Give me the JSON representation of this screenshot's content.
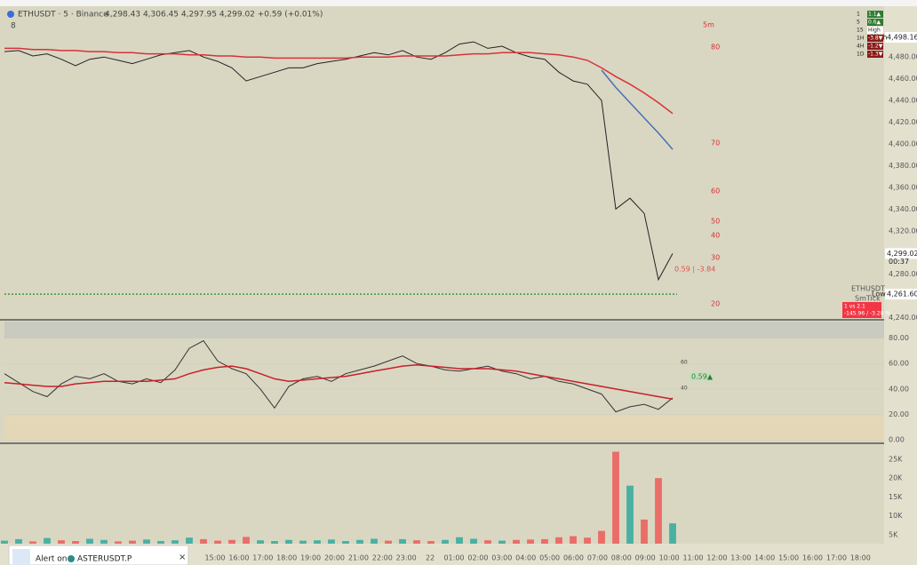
{
  "header": {
    "symbol": "ETHUSDT · 5 · Binance",
    "ohlc": "4,298.43  4,306.45  4,297.95  4,299.02  +0.59 (+0.01%)",
    "indicator_count": "8"
  },
  "price_chart": {
    "type": "line",
    "series": [
      {
        "name": "ETHUSDT",
        "color": "#222222",
        "values": [
          4485,
          4486,
          4481,
          4483,
          4478,
          4472,
          4478,
          4480,
          4477,
          4474,
          4478,
          4482,
          4484,
          4486,
          4480,
          4476,
          4470,
          4458,
          4462,
          4466,
          4470,
          4470,
          4474,
          4476,
          4478,
          4481,
          4484,
          4482,
          4486,
          4480,
          4478,
          4484,
          4492,
          4494,
          4488,
          4490,
          4484,
          4480,
          4478,
          4466,
          4458,
          4455,
          4440,
          4340,
          4350,
          4336,
          4275,
          4299
        ]
      },
      {
        "name": "MA slow",
        "color": "#d9303a",
        "values": [
          4488,
          4488,
          4487,
          4487,
          4486,
          4486,
          4485,
          4485,
          4484,
          4484,
          4483,
          4483,
          4483,
          4482,
          4482,
          4481,
          4481,
          4480,
          4480,
          4479,
          4479,
          4479,
          4479,
          4479,
          4479,
          4480,
          4480,
          4480,
          4481,
          4481,
          4481,
          4481,
          4482,
          4483,
          4483,
          4484,
          4484,
          4484,
          4483,
          4482,
          4480,
          4477,
          4470,
          4462,
          4455,
          4447,
          4438,
          4428
        ]
      },
      {
        "name": "MA fast",
        "color": "#4a6fb5",
        "values": [
          null,
          null,
          null,
          null,
          null,
          null,
          null,
          null,
          null,
          null,
          null,
          null,
          null,
          null,
          null,
          null,
          null,
          null,
          null,
          null,
          null,
          null,
          null,
          null,
          null,
          null,
          null,
          null,
          null,
          null,
          null,
          null,
          null,
          null,
          null,
          null,
          null,
          null,
          null,
          null,
          null,
          null,
          4468,
          4452,
          4438,
          4424,
          4410,
          4395
        ]
      }
    ],
    "ylim": [
      4238,
      4526
    ],
    "yticks": [
      {
        "value": 4480,
        "label": "4,480.00"
      },
      {
        "value": 4460,
        "label": "4,460.00"
      },
      {
        "value": 4440,
        "label": "4,440.00"
      },
      {
        "value": 4420,
        "label": "4,420.00"
      },
      {
        "value": 4400,
        "label": "4,400.00"
      },
      {
        "value": 4380,
        "label": "4,380.00"
      },
      {
        "value": 4360,
        "label": "4,360.00"
      },
      {
        "value": 4340,
        "label": "4,340.00"
      },
      {
        "value": 4320,
        "label": "4,320.00"
      },
      {
        "value": 4280,
        "label": "4,280.00"
      },
      {
        "value": 4240,
        "label": "4,240.00"
      }
    ],
    "high_label": "High",
    "high": {
      "value": 4498.16,
      "label": "4,498.16"
    },
    "low_label": "Low",
    "low": {
      "value": 4261.6,
      "label": "4,261.60"
    },
    "last": {
      "value": 4299.02,
      "label": "4,299.02"
    },
    "countdown": "00:37",
    "timeframe": "5m",
    "level_labels": [
      "80",
      "70",
      "60",
      "50",
      "40",
      "30",
      "20"
    ],
    "annotation": "0.59 | -3.84",
    "symbol_tag": "ETHUSDT",
    "tick_tag": "SmTick",
    "change_box": [
      "1 vs 2.1",
      "-145.96 / -3.28 %"
    ]
  },
  "timeframe_table": {
    "rows": [
      [
        "1",
        "1.1▲"
      ],
      [
        "5",
        "0.6▲"
      ],
      [
        "15",
        "High"
      ],
      [
        "1H",
        "-3.8▼"
      ],
      [
        "4H",
        "-1.2▼"
      ],
      [
        "1D",
        "-1.3▼"
      ]
    ]
  },
  "rsi_chart": {
    "type": "line",
    "series": [
      {
        "name": "RSI",
        "color": "#333333",
        "values": [
          52,
          45,
          38,
          34,
          44,
          50,
          48,
          52,
          46,
          44,
          48,
          45,
          55,
          72,
          78,
          62,
          56,
          52,
          40,
          25,
          42,
          48,
          50,
          46,
          52,
          55,
          58,
          62,
          66,
          60,
          58,
          55,
          54,
          56,
          58,
          54,
          52,
          48,
          50,
          46,
          44,
          40,
          36,
          22,
          26,
          28,
          24,
          33
        ]
      },
      {
        "name": "RSI MA",
        "color": "#c8202a",
        "values": [
          45,
          44,
          43,
          42,
          42,
          44,
          45,
          46,
          46,
          46,
          46,
          47,
          48,
          52,
          55,
          57,
          58,
          56,
          52,
          48,
          46,
          47,
          48,
          49,
          50,
          52,
          54,
          56,
          58,
          59,
          58,
          57,
          56,
          56,
          56,
          55,
          54,
          52,
          50,
          48,
          46,
          44,
          42,
          40,
          38,
          36,
          34,
          32
        ]
      }
    ],
    "ylim": [
      -2,
      93
    ],
    "yticks": [
      {
        "value": 80,
        "label": "80.00"
      },
      {
        "value": 60,
        "label": "60.00"
      },
      {
        "value": 40,
        "label": "40.00"
      },
      {
        "value": 20,
        "label": "20.00"
      },
      {
        "value": 0,
        "label": "0.00"
      }
    ],
    "level_labels": [
      "60",
      "40"
    ],
    "badge": "0.59▲"
  },
  "volume_chart": {
    "type": "bar",
    "values": [
      3400,
      3800,
      3200,
      4100,
      3500,
      3300,
      3900,
      3600,
      3200,
      3400,
      3700,
      3300,
      3500,
      4200,
      3800,
      3400,
      3600,
      4400,
      3500,
      3300,
      3600,
      3400,
      3500,
      3700,
      3300,
      3600,
      3900,
      3400,
      3800,
      3500,
      3300,
      3600,
      4300,
      3900,
      3500,
      3400,
      3600,
      3700,
      3800,
      4300,
      4600,
      4200,
      6000,
      27000,
      18000,
      9000,
      20000,
      8000
    ],
    "up_color": "#26a69a",
    "down_color": "#ef5350",
    "ylim": [
      2600,
      29000
    ],
    "yticks": [
      {
        "value": 25000,
        "label": "25K"
      },
      {
        "value": 20000,
        "label": "20K"
      },
      {
        "value": 15000,
        "label": "15K"
      },
      {
        "value": 10000,
        "label": "10K"
      },
      {
        "value": 5000,
        "label": "5K"
      }
    ]
  },
  "time_axis": {
    "labels": [
      "15:00",
      "16:00",
      "17:00",
      "18:00",
      "19:00",
      "20:00",
      "21:00",
      "22:00",
      "23:00",
      "22",
      "01:00",
      "02:00",
      "03:00",
      "04:00",
      "05:00",
      "06:00",
      "07:00",
      "08:00",
      "09:00",
      "10:00",
      "11:00",
      "12:00",
      "13:00",
      "14:00",
      "15:00",
      "16:00",
      "17:00",
      "18:00"
    ]
  },
  "alert": {
    "prefix": "Alert on",
    "symbol": "ASTERUSDT.P",
    "close": "×"
  }
}
